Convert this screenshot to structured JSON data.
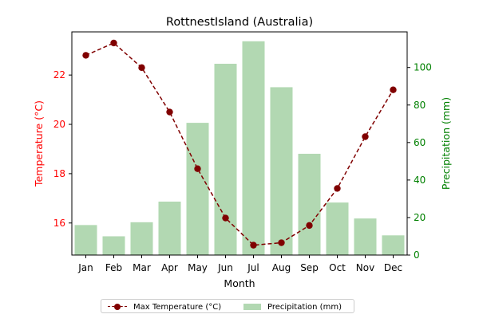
{
  "chart_data": {
    "type": "bar+line",
    "title": "RottnestIsland (Australia)",
    "xlabel": "Month",
    "categories": [
      "Jan",
      "Feb",
      "Mar",
      "Apr",
      "May",
      "Jun",
      "Jul",
      "Aug",
      "Sep",
      "Oct",
      "Nov",
      "Dec"
    ],
    "left_axis": {
      "label": "Temperature (°C)",
      "color": "#ff0000",
      "ylim": [
        14.7,
        23.75
      ],
      "ticks": [
        "16",
        "18",
        "20",
        "22"
      ]
    },
    "right_axis": {
      "label": "Precipitation (mm)",
      "color": "#008000",
      "ylim": [
        0,
        119
      ],
      "ticks": [
        "0",
        "20",
        "40",
        "60",
        "80",
        "100"
      ]
    },
    "series": [
      {
        "name": "Max Temperature (°C)",
        "kind": "line",
        "axis": "left",
        "color": "#800000",
        "values": [
          22.8,
          23.3,
          22.3,
          20.5,
          18.2,
          16.2,
          15.1,
          15.2,
          15.9,
          17.4,
          19.5,
          21.4
        ]
      },
      {
        "name": "Precipitation (mm)",
        "kind": "bar",
        "axis": "right",
        "color": "#b2d8b2",
        "values": [
          16,
          10,
          17.5,
          28.5,
          70.5,
          102,
          114,
          89.5,
          54,
          28,
          19.5,
          10.5
        ]
      }
    ],
    "legend_placement": "bottom-center",
    "grid": false
  }
}
